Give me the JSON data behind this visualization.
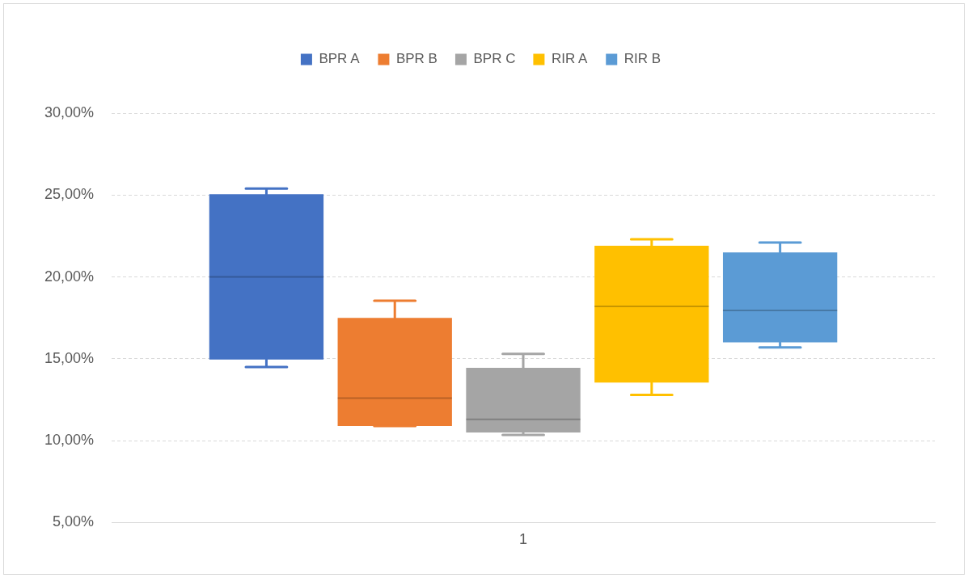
{
  "chart_data": {
    "type": "box",
    "categories": [
      "1"
    ],
    "ylim": [
      5,
      30
    ],
    "yticks": [
      {
        "value": 5,
        "label": "5,00%"
      },
      {
        "value": 10,
        "label": "10,00%"
      },
      {
        "value": 15,
        "label": "15,00%"
      },
      {
        "value": 20,
        "label": "20,00%"
      },
      {
        "value": 25,
        "label": "25,00%"
      },
      {
        "value": 30,
        "label": "30,00%"
      }
    ],
    "grid": "y",
    "legend": "top",
    "series": [
      {
        "name": "BPR A",
        "color": "#4472c4",
        "boxes": [
          {
            "low": 14.5,
            "q1": 14.95,
            "median": 20,
            "q3": 25.05,
            "high": 25.4
          }
        ]
      },
      {
        "name": "BPR B",
        "color": "#ed7d31",
        "boxes": [
          {
            "low": 10.9,
            "q1": 10.9,
            "median": 12.6,
            "q3": 17.5,
            "high": 18.55
          }
        ]
      },
      {
        "name": "BPR C",
        "color": "#a5a5a5",
        "boxes": [
          {
            "low": 10.35,
            "q1": 10.5,
            "median": 11.3,
            "q3": 14.45,
            "high": 15.3
          }
        ]
      },
      {
        "name": "RIR A",
        "color": "#ffc000",
        "boxes": [
          {
            "low": 12.8,
            "q1": 13.55,
            "median": 18.2,
            "q3": 21.9,
            "high": 22.3
          }
        ]
      },
      {
        "name": "RIR B",
        "color": "#5b9bd5",
        "boxes": [
          {
            "low": 15.7,
            "q1": 16,
            "median": 17.95,
            "q3": 21.5,
            "high": 22.1
          }
        ]
      }
    ]
  }
}
